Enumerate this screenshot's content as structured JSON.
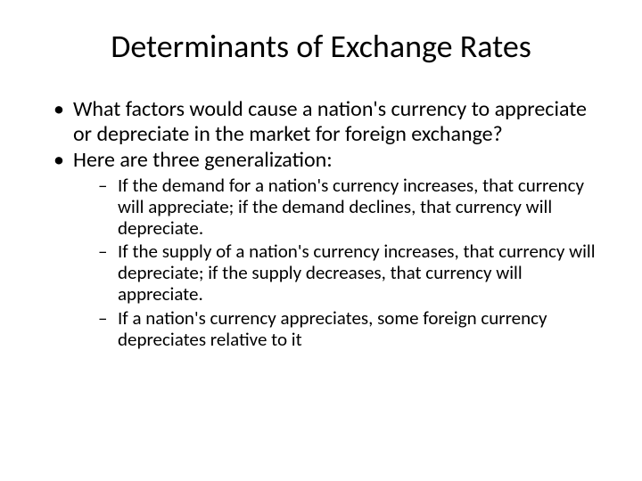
{
  "slide": {
    "title": "Determinants of Exchange Rates",
    "title_fontsize": 36,
    "background_color": "#ffffff",
    "text_color": "#000000",
    "bullets": [
      {
        "text": "What factors would cause a nation's currency to appreciate or depreciate in the market for foreign exchange?",
        "fontsize": 24
      },
      {
        "text": "Here are three generalization:",
        "fontsize": 24,
        "sub_bullets": [
          {
            "text": "If the demand for a nation's currency increases, that currency will appreciate; if the demand declines, that currency will depreciate.",
            "fontsize": 21
          },
          {
            "text": "If the supply of a nation's currency increases, that currency will depreciate;  if the supply decreases, that currency will appreciate.",
            "fontsize": 21
          },
          {
            "text": "If a nation's currency appreciates, some foreign currency depreciates relative to it",
            "fontsize": 21
          }
        ]
      }
    ]
  }
}
